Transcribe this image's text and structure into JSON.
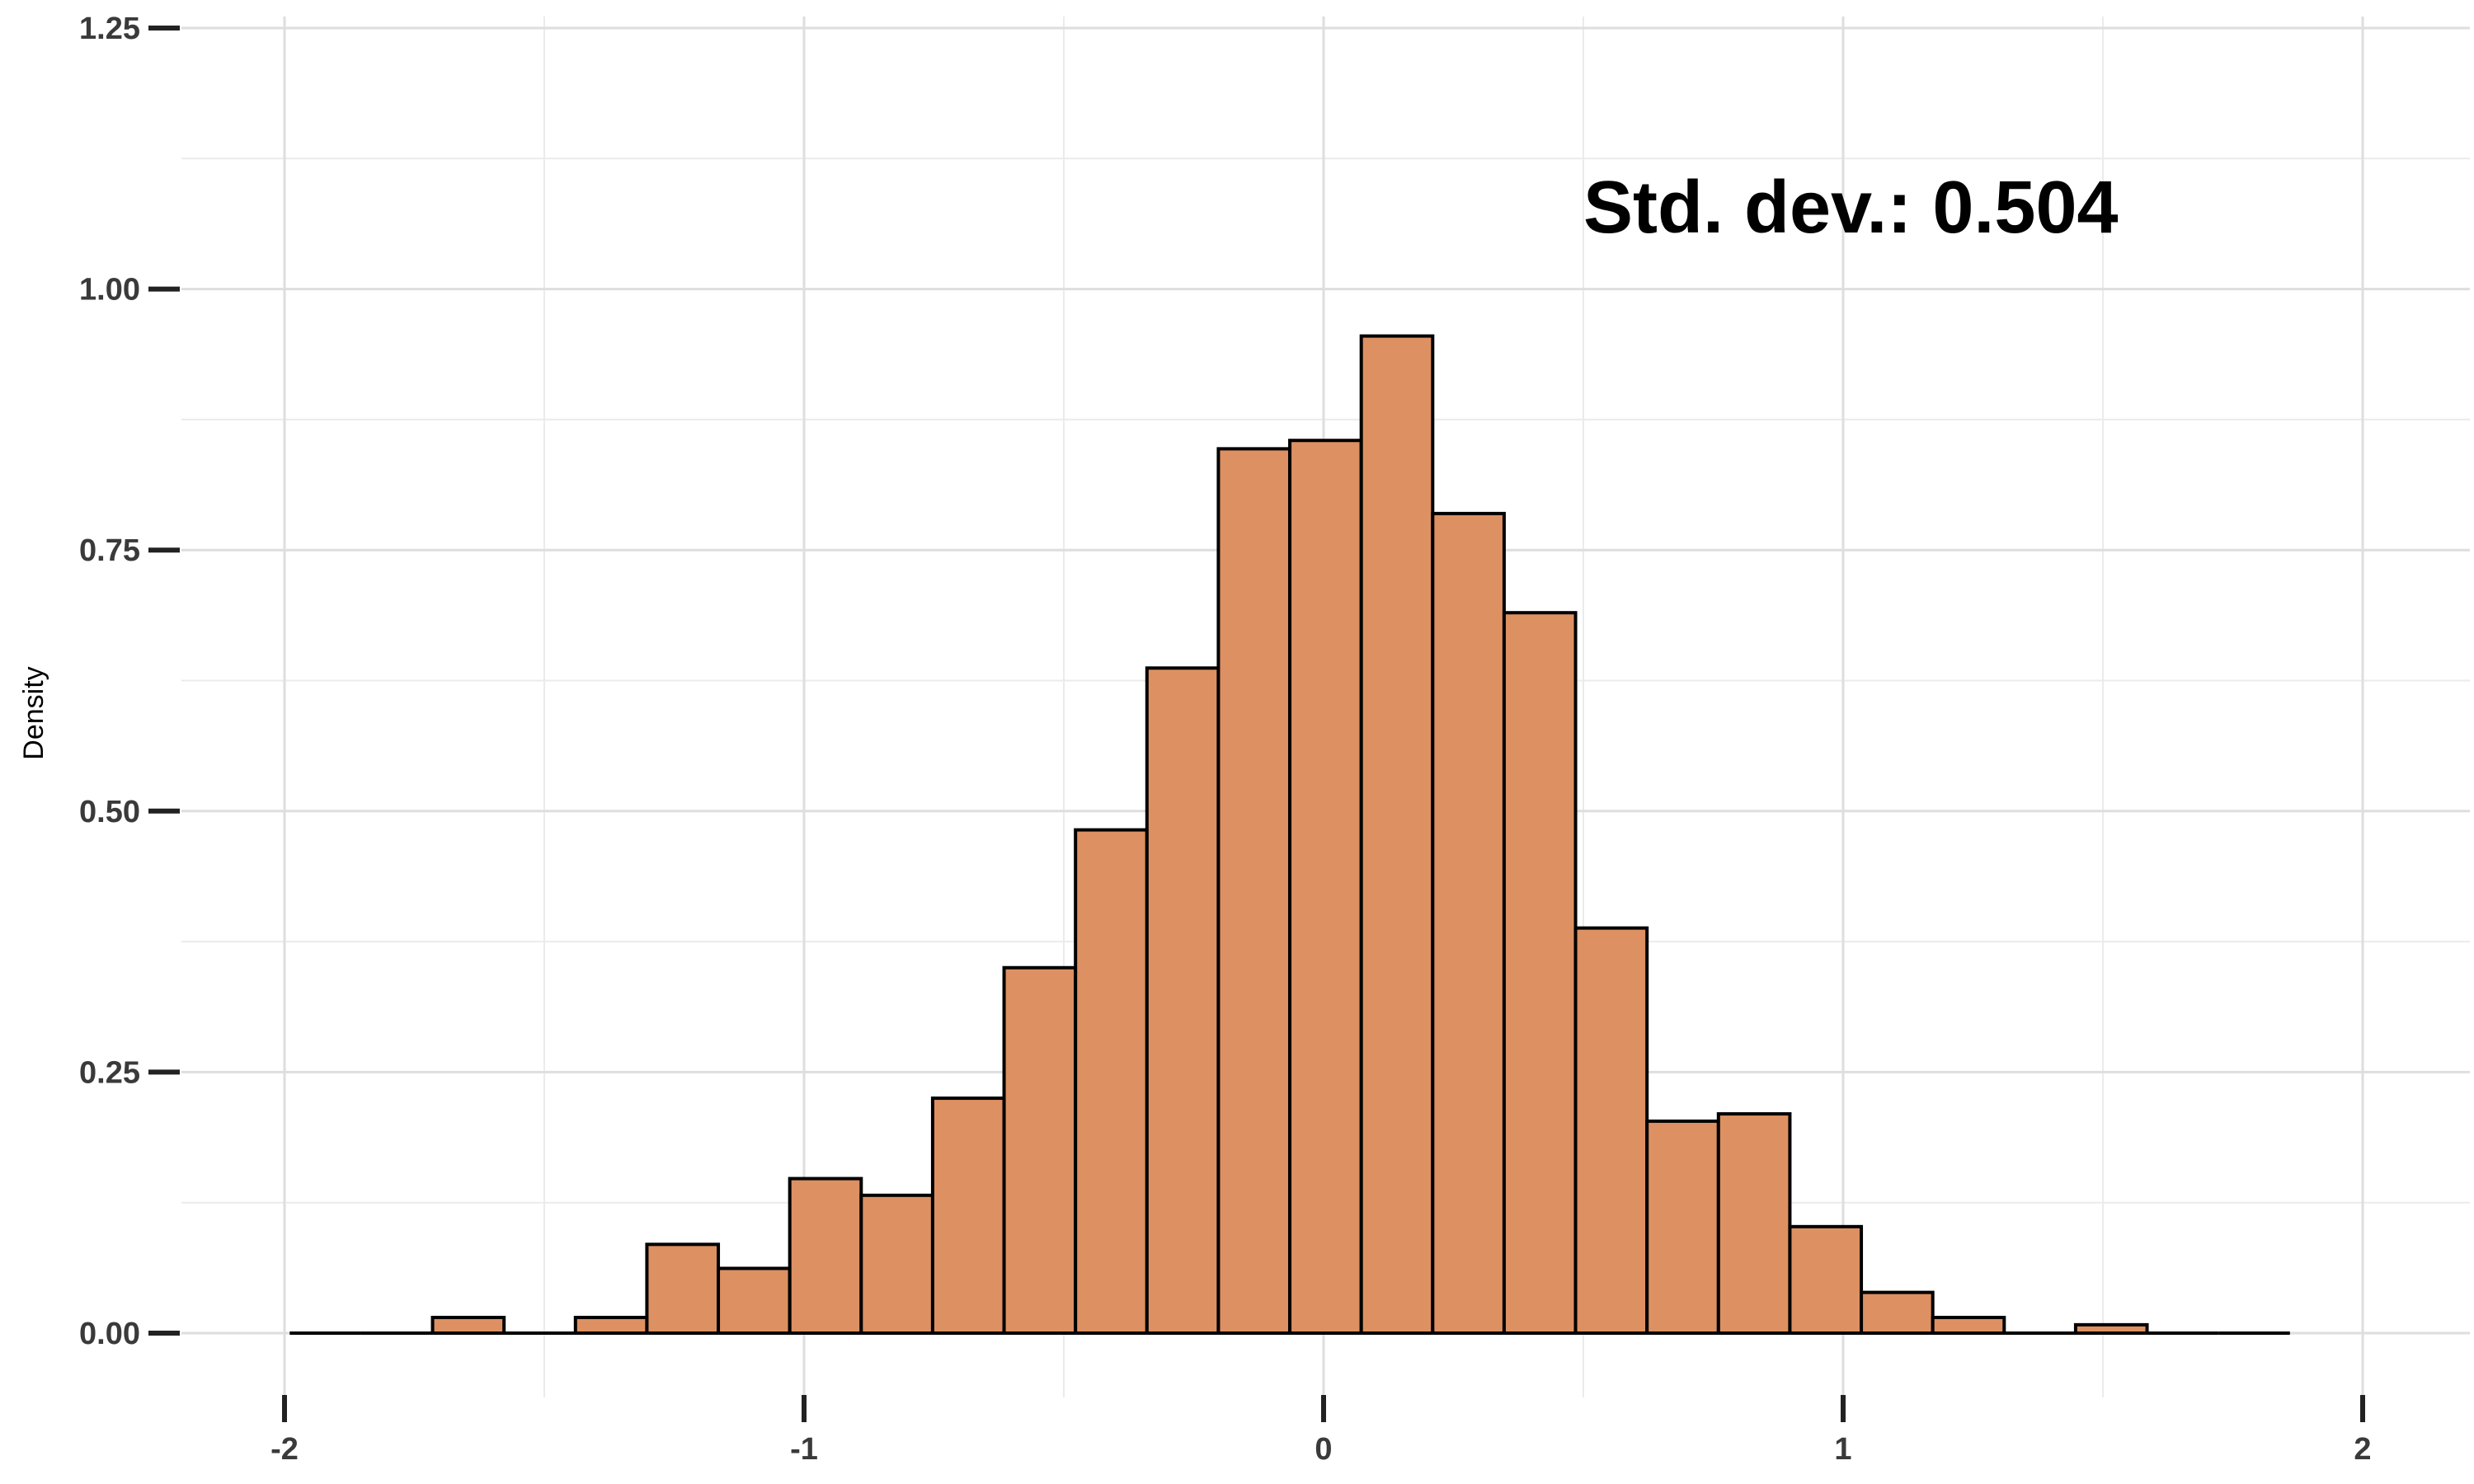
{
  "chart_data": {
    "type": "bar",
    "subtype": "histogram",
    "title": "",
    "xlabel": "",
    "ylabel": "Density",
    "annotation": "Std. dev.: 0.504",
    "xlim": [
      -2.05,
      2.2
    ],
    "ylim": [
      0,
      1.25
    ],
    "x_ticks": [
      -2,
      -1,
      0,
      1,
      2
    ],
    "x_tick_labels": [
      "-2",
      "-1",
      "0",
      "1",
      "2"
    ],
    "y_ticks": [
      0,
      0.25,
      0.5,
      0.75,
      1.0,
      1.25
    ],
    "y_tick_labels": [
      "0.00",
      "0.25",
      "0.50",
      "0.75",
      "1.00",
      "1.25"
    ],
    "grid": true,
    "bin_width": 0.1375,
    "bin_start": -1.99,
    "values": [
      0,
      0,
      0.015,
      0,
      0.015,
      0.085,
      0.062,
      0.148,
      0.132,
      0.225,
      0.35,
      0.482,
      0.637,
      0.847,
      0.855,
      0.955,
      0.785,
      0.69,
      0.388,
      0.203,
      0.21,
      0.102,
      0.039,
      0.015,
      0,
      0.008,
      0,
      0
    ],
    "bar_color": "#dd9062",
    "edge_color": "#000000"
  }
}
